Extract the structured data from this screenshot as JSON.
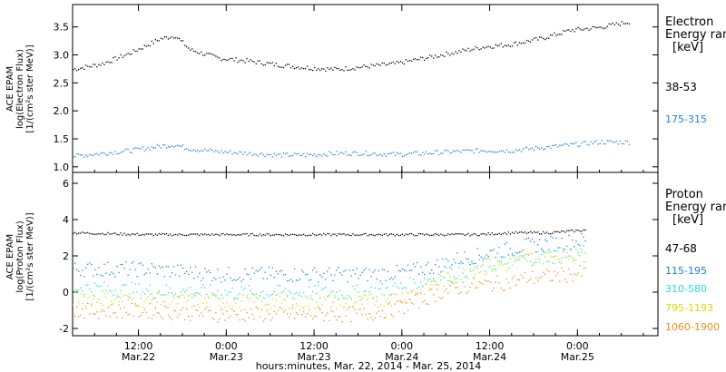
{
  "chart_data": [
    {
      "type": "scatter",
      "ylabel_lines": [
        "ACE EPAM",
        "log(Electron Flux)",
        "[1/(cm²s ster MeV)]"
      ],
      "legend_title": [
        "Electron",
        "Energy ran"
      ],
      "legend_unit": "[keV]",
      "yticks": [
        "1.0",
        "1.5",
        "2.0",
        "2.5",
        "3.0",
        "3.5"
      ],
      "ylim": [
        0.9,
        3.9
      ],
      "xlim": [
        0,
        80
      ],
      "series": [
        {
          "name": "38-53",
          "color": "#000000",
          "x": [
            0,
            4,
            8,
            12,
            14,
            16,
            20,
            24,
            28,
            32,
            36,
            40,
            44,
            48,
            52,
            56,
            60,
            64,
            68,
            72,
            76
          ],
          "y": [
            2.75,
            2.85,
            3.05,
            3.3,
            3.35,
            3.1,
            2.95,
            2.9,
            2.83,
            2.78,
            2.75,
            2.8,
            2.85,
            2.95,
            3.05,
            3.15,
            3.2,
            3.3,
            3.45,
            3.5,
            3.6
          ]
        },
        {
          "name": "175-315",
          "color": "#1f7fd8",
          "x": [
            0,
            4,
            8,
            12,
            14,
            16,
            20,
            24,
            28,
            32,
            36,
            40,
            44,
            48,
            52,
            56,
            60,
            64,
            68,
            72,
            76
          ],
          "y": [
            1.2,
            1.25,
            1.3,
            1.38,
            1.4,
            1.33,
            1.28,
            1.25,
            1.22,
            1.22,
            1.25,
            1.25,
            1.23,
            1.25,
            1.28,
            1.3,
            1.3,
            1.35,
            1.4,
            1.45,
            1.45
          ]
        }
      ]
    },
    {
      "type": "scatter",
      "ylabel_lines": [
        "ACE EPAM",
        "log(Proton Flux)",
        "[1/(cm²s ster MeV)]"
      ],
      "legend_title": [
        "Proton",
        "Energy ran"
      ],
      "legend_unit": "[keV]",
      "yticks": [
        "-2",
        "0",
        "2",
        "4",
        "6"
      ],
      "ylim": [
        -2.4,
        6.6
      ],
      "xlim": [
        0,
        80
      ],
      "xticks": [
        {
          "x": 9,
          "top": "12:00",
          "bottom": "Mar.22"
        },
        {
          "x": 21,
          "top": "0:00",
          "bottom": "Mar.23"
        },
        {
          "x": 33,
          "top": "12:00",
          "bottom": "Mar.23"
        },
        {
          "x": 45,
          "top": "0:00",
          "bottom": "Mar.24"
        },
        {
          "x": 57,
          "top": "12:00",
          "bottom": "Mar.24"
        },
        {
          "x": 69,
          "top": "0:00",
          "bottom": "Mar.25"
        }
      ],
      "xlabel": "hours:minutes, Mar. 22, 2014 - Mar. 25, 2014",
      "series": [
        {
          "name": "47-68",
          "color": "#000000",
          "x": [
            0,
            10,
            20,
            30,
            40,
            50,
            55,
            60,
            65,
            70
          ],
          "y": [
            3.3,
            3.2,
            3.2,
            3.2,
            3.2,
            3.2,
            3.2,
            3.3,
            3.3,
            3.45
          ]
        },
        {
          "name": "115-195",
          "color": "#1f7fd8",
          "x": [
            0,
            10,
            20,
            30,
            40,
            45,
            50,
            53,
            55,
            58,
            60,
            62,
            65,
            70
          ],
          "y": [
            1.3,
            1.3,
            1.0,
            1.0,
            1.0,
            1.1,
            1.5,
            1.9,
            2.0,
            2.3,
            2.4,
            2.6,
            2.7,
            2.9
          ]
        },
        {
          "name": "310-580",
          "color": "#22dcdc",
          "x": [
            0,
            10,
            20,
            30,
            40,
            45,
            50,
            53,
            55,
            58,
            60,
            62,
            65,
            70
          ],
          "y": [
            0.3,
            0.1,
            0.0,
            0.0,
            0.0,
            0.3,
            0.9,
            1.2,
            1.4,
            1.6,
            1.7,
            1.9,
            2.0,
            2.2
          ]
        },
        {
          "name": "795-1193",
          "color": "#d6dc00",
          "x": [
            0,
            10,
            20,
            30,
            40,
            45,
            50,
            53,
            55,
            58,
            60,
            62,
            65,
            70
          ],
          "y": [
            -0.3,
            -0.4,
            -0.5,
            -0.5,
            -0.5,
            -0.2,
            0.6,
            1.0,
            1.3,
            1.5,
            1.6,
            1.9,
            2.0,
            2.1
          ]
        },
        {
          "name": "1060-1900",
          "color": "#ef8a1a",
          "x": [
            0,
            10,
            20,
            30,
            40,
            45,
            50,
            53,
            55,
            58,
            60,
            62,
            65,
            70
          ],
          "y": [
            -1.0,
            -1.0,
            -1.2,
            -1.2,
            -1.2,
            -0.8,
            0.0,
            0.3,
            0.4,
            0.5,
            0.6,
            0.8,
            0.9,
            1.1
          ]
        }
      ]
    }
  ]
}
